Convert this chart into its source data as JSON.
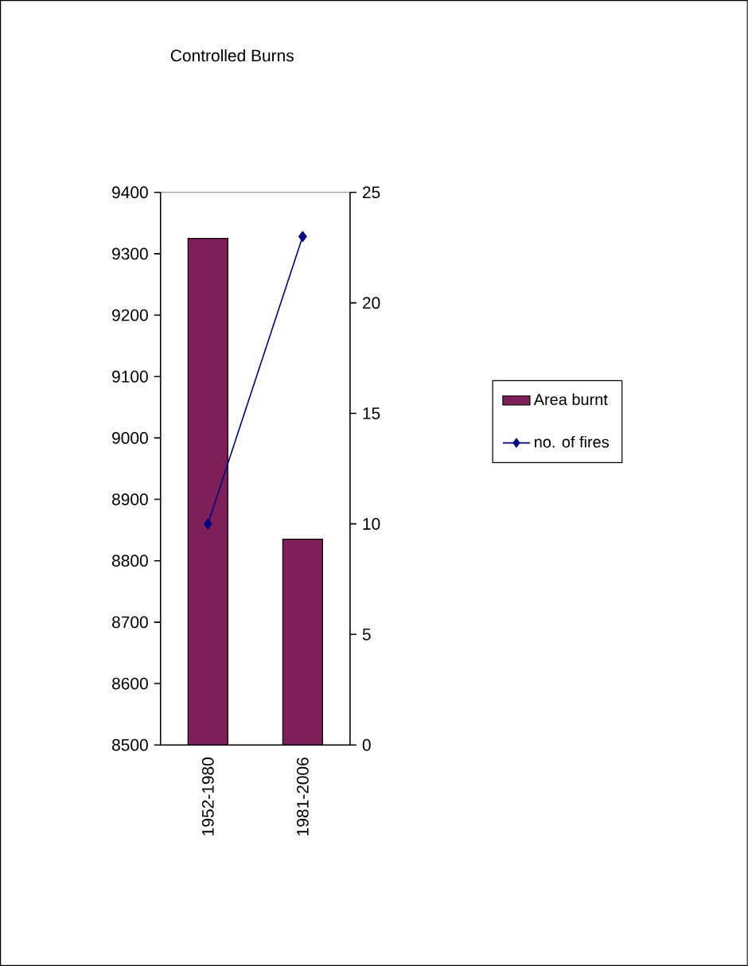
{
  "chart_data": {
    "type": "bar",
    "title": "Controlled Burns",
    "categories": [
      "1952-1980",
      "1981-2006"
    ],
    "series": [
      {
        "name": "Area burnt",
        "color": "#7f1f5a",
        "values": [
          9325,
          8835
        ]
      },
      {
        "name": "no. of fires",
        "type": "line",
        "axis": "y2",
        "color": "#000080",
        "marker": "diamond",
        "values": [
          10,
          23
        ]
      }
    ],
    "ylim": [
      8500,
      9400
    ],
    "yticks": [
      8500,
      8600,
      8700,
      8800,
      8900,
      9000,
      9100,
      9200,
      9300,
      9400
    ],
    "y2lim": [
      0,
      25
    ],
    "y2ticks": [
      0,
      5,
      10,
      15,
      20,
      25
    ],
    "legend": "right"
  }
}
